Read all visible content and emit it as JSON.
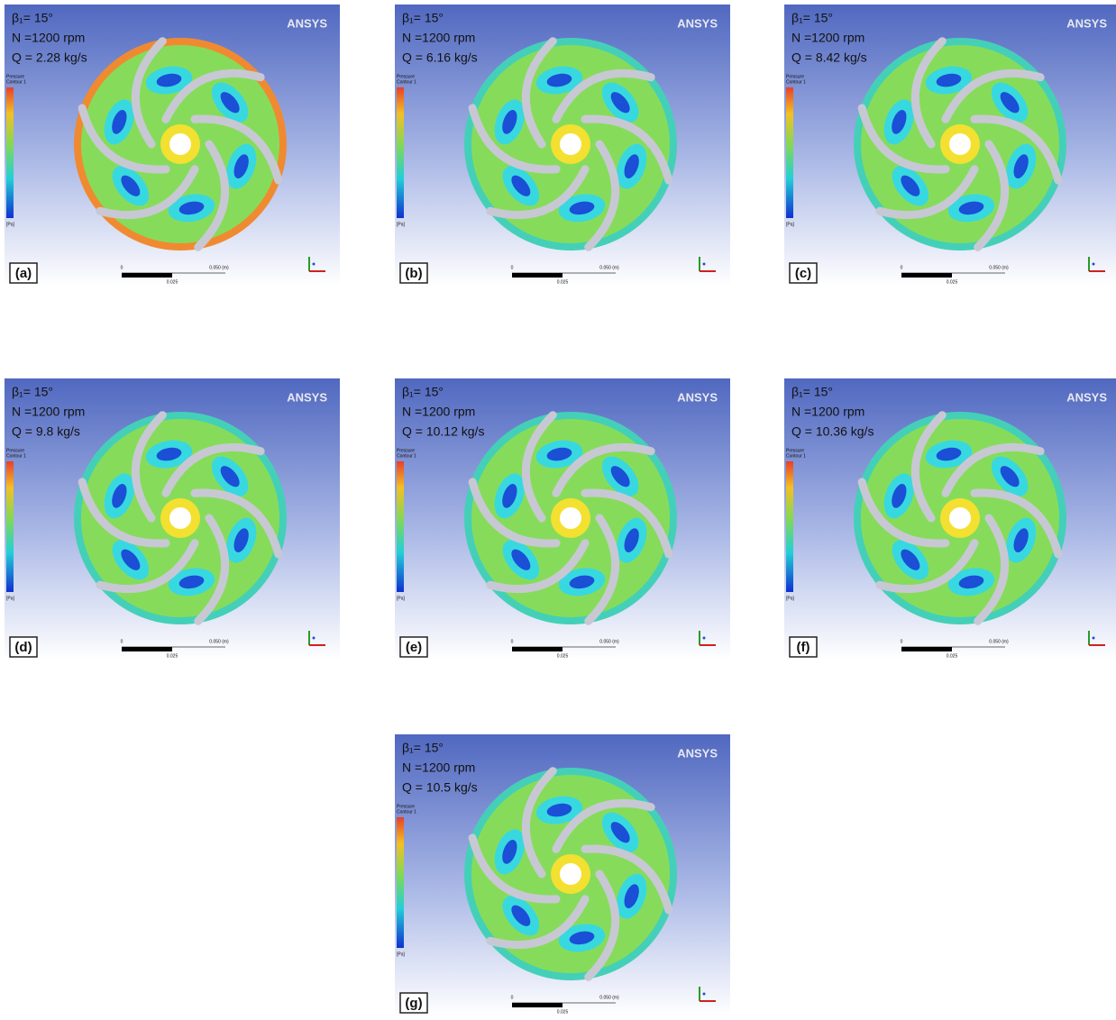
{
  "panels": [
    {
      "label": "(a)",
      "beta": "β₁= 15°",
      "speed": "N =1200 rpm",
      "flow": "Q = 2.28 kg/s"
    },
    {
      "label": "(b)",
      "beta": "β₁= 15°",
      "speed": "N =1200 rpm",
      "flow": "Q = 6.16 kg/s"
    },
    {
      "label": "(c)",
      "beta": "β₁= 15°",
      "speed": "N =1200 rpm",
      "flow": "Q = 8.42 kg/s"
    },
    {
      "label": "(d)",
      "beta": "β₁= 15°",
      "speed": "N =1200 rpm",
      "flow": "Q = 9.8 kg/s"
    },
    {
      "label": "(e)",
      "beta": "β₁= 15°",
      "speed": "N =1200 rpm",
      "flow": "Q = 10.12 kg/s"
    },
    {
      "label": "(f)",
      "beta": "β₁= 15°",
      "speed": "N =1200 rpm",
      "flow": "Q = 10.36 kg/s"
    },
    {
      "label": "(g)",
      "beta": "β₁= 15°",
      "speed": "N =1200 rpm",
      "flow": "Q = 10.5 kg/s"
    }
  ],
  "brand": "ANSYS",
  "legend_title": "Pressure",
  "legend_subtitle": "Contour 1",
  "legend_unit": "[Pa]",
  "scale_start": "0",
  "scale_end": "0.050 (m)",
  "scale_mid": "0.025"
}
